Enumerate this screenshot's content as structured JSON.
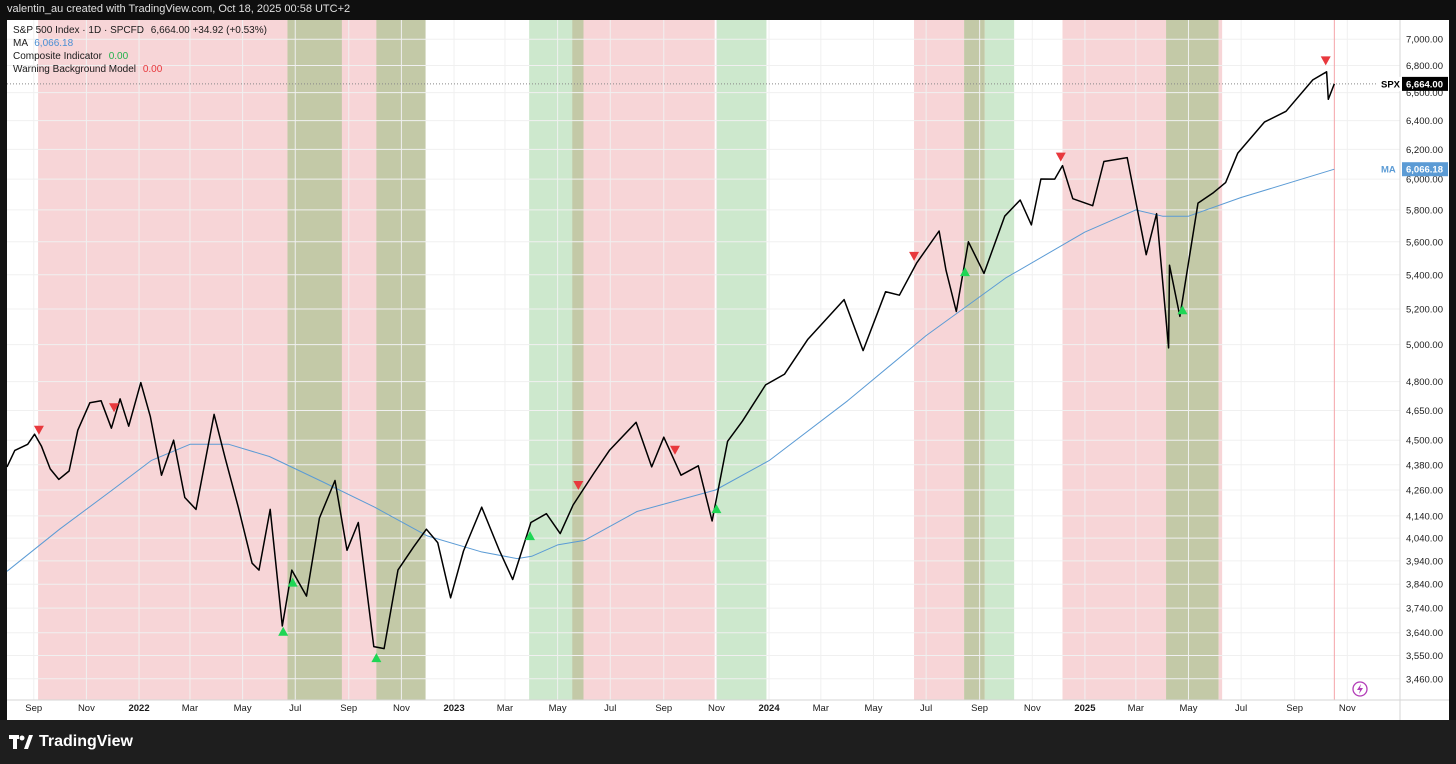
{
  "header": {
    "text": "valentin_au created with TradingView.com, Oct 18, 2025 00:58 UTC+2"
  },
  "legend": {
    "symbol": "S&P 500 Index · 1D · SPCFD",
    "symbol_values": "6,664.00  +34.92 (+0.53%)",
    "ma_label": "MA",
    "ma_value": "6,066.18",
    "composite_label": "Composite Indicator",
    "composite_value": "0.00",
    "warning_label": "Warning Background Model",
    "warning_value": "0.00"
  },
  "price_tags": {
    "spx_label": "SPX",
    "spx_value": "6,664.00",
    "ma_label": "MA",
    "ma_value": "6,066.18"
  },
  "footer": {
    "logo_text": "TradingView"
  },
  "colors": {
    "price": "#000000",
    "ma": "#5b9bd5",
    "warning_bg": "#f7d5d7",
    "green_bg": "#cde8cd",
    "overlap_bg": "#c3c9a7",
    "buy_marker": "#1fd655",
    "sell_marker": "#e8383d"
  },
  "chart_data": {
    "type": "line",
    "y_scale": "log",
    "ylim": [
      3380,
      7150
    ],
    "x_range": [
      "2021-08-01",
      "2025-11-25"
    ],
    "x_ticks": [
      {
        "label": "Sep",
        "date": "2021-09-01"
      },
      {
        "label": "Nov",
        "date": "2021-11-01"
      },
      {
        "label": "2022",
        "date": "2022-01-01"
      },
      {
        "label": "Mar",
        "date": "2022-03-01"
      },
      {
        "label": "May",
        "date": "2022-05-01"
      },
      {
        "label": "Jul",
        "date": "2022-07-01"
      },
      {
        "label": "Sep",
        "date": "2022-09-01"
      },
      {
        "label": "Nov",
        "date": "2022-11-01"
      },
      {
        "label": "2023",
        "date": "2023-01-01"
      },
      {
        "label": "Mar",
        "date": "2023-03-01"
      },
      {
        "label": "May",
        "date": "2023-05-01"
      },
      {
        "label": "Jul",
        "date": "2023-07-01"
      },
      {
        "label": "Sep",
        "date": "2023-09-01"
      },
      {
        "label": "Nov",
        "date": "2023-11-01"
      },
      {
        "label": "2024",
        "date": "2024-01-01"
      },
      {
        "label": "Mar",
        "date": "2024-03-01"
      },
      {
        "label": "May",
        "date": "2024-05-01"
      },
      {
        "label": "Jul",
        "date": "2024-07-01"
      },
      {
        "label": "Sep",
        "date": "2024-09-01"
      },
      {
        "label": "Nov",
        "date": "2024-11-01"
      },
      {
        "label": "2025",
        "date": "2025-01-01"
      },
      {
        "label": "Mar",
        "date": "2025-03-01"
      },
      {
        "label": "May",
        "date": "2025-05-01"
      },
      {
        "label": "Jul",
        "date": "2025-07-01"
      },
      {
        "label": "Sep",
        "date": "2025-09-01"
      },
      {
        "label": "Nov",
        "date": "2025-11-01"
      }
    ],
    "y_ticks": [
      {
        "label": "7,000.00",
        "value": 7000
      },
      {
        "label": "6,800.00",
        "value": 6800
      },
      {
        "label": "6,600.00",
        "value": 6600
      },
      {
        "label": "6,400.00",
        "value": 6400
      },
      {
        "label": "6,200.00",
        "value": 6200
      },
      {
        "label": "6,000.00",
        "value": 6000
      },
      {
        "label": "5,800.00",
        "value": 5800
      },
      {
        "label": "5,600.00",
        "value": 5600
      },
      {
        "label": "5,400.00",
        "value": 5400
      },
      {
        "label": "5,200.00",
        "value": 5200
      },
      {
        "label": "5,000.00",
        "value": 5000
      },
      {
        "label": "4,800.00",
        "value": 4800
      },
      {
        "label": "4,650.00",
        "value": 4650
      },
      {
        "label": "4,500.00",
        "value": 4500
      },
      {
        "label": "4,380.00",
        "value": 4380
      },
      {
        "label": "4,260.00",
        "value": 4260
      },
      {
        "label": "4,140.00",
        "value": 4140
      },
      {
        "label": "4,040.00",
        "value": 4040
      },
      {
        "label": "3,940.00",
        "value": 3940
      },
      {
        "label": "3,840.00",
        "value": 3840
      },
      {
        "label": "3,740.00",
        "value": 3740
      },
      {
        "label": "3,640.00",
        "value": 3640
      },
      {
        "label": "3,550.00",
        "value": 3550
      },
      {
        "label": "3,460.00",
        "value": 3460
      }
    ],
    "background_bands": [
      {
        "type": "warning",
        "start": "2021-09-06",
        "end": "2022-10-29"
      },
      {
        "type": "overlap",
        "start": "2022-06-22",
        "end": "2022-08-24"
      },
      {
        "type": "overlap",
        "start": "2022-10-03",
        "end": "2022-11-29"
      },
      {
        "type": "green",
        "start": "2023-03-29",
        "end": "2023-05-28"
      },
      {
        "type": "overlap",
        "start": "2023-05-18",
        "end": "2023-05-31"
      },
      {
        "type": "warning",
        "start": "2023-05-31",
        "end": "2023-10-30"
      },
      {
        "type": "green",
        "start": "2023-11-01",
        "end": "2023-12-29"
      },
      {
        "type": "warning",
        "start": "2024-06-17",
        "end": "2024-08-14"
      },
      {
        "type": "overlap",
        "start": "2024-08-14",
        "end": "2024-09-07"
      },
      {
        "type": "green",
        "start": "2024-09-07",
        "end": "2024-10-11"
      },
      {
        "type": "warning",
        "start": "2024-12-06",
        "end": "2025-04-05"
      },
      {
        "type": "overlap",
        "start": "2025-04-05",
        "end": "2025-06-05"
      },
      {
        "type": "warning",
        "start": "2025-06-05",
        "end": "2025-06-09"
      }
    ],
    "series": [
      {
        "key": "price",
        "points": [
          [
            "2021-08-01",
            4370
          ],
          [
            "2021-08-10",
            4450
          ],
          [
            "2021-08-25",
            4480
          ],
          [
            "2021-09-02",
            4530
          ],
          [
            "2021-09-10",
            4470
          ],
          [
            "2021-09-20",
            4360
          ],
          [
            "2021-09-30",
            4310
          ],
          [
            "2021-10-12",
            4350
          ],
          [
            "2021-10-22",
            4550
          ],
          [
            "2021-11-05",
            4690
          ],
          [
            "2021-11-18",
            4700
          ],
          [
            "2021-11-30",
            4560
          ],
          [
            "2021-12-10",
            4710
          ],
          [
            "2021-12-20",
            4570
          ],
          [
            "2022-01-03",
            4795
          ],
          [
            "2022-01-14",
            4620
          ],
          [
            "2022-01-27",
            4330
          ],
          [
            "2022-02-10",
            4500
          ],
          [
            "2022-02-23",
            4225
          ],
          [
            "2022-03-08",
            4170
          ],
          [
            "2022-03-29",
            4630
          ],
          [
            "2022-04-11",
            4410
          ],
          [
            "2022-04-26",
            4180
          ],
          [
            "2022-05-12",
            3930
          ],
          [
            "2022-05-20",
            3900
          ],
          [
            "2022-06-02",
            4170
          ],
          [
            "2022-06-16",
            3667
          ],
          [
            "2022-06-27",
            3900
          ],
          [
            "2022-07-14",
            3790
          ],
          [
            "2022-07-29",
            4130
          ],
          [
            "2022-08-16",
            4305
          ],
          [
            "2022-08-30",
            3986
          ],
          [
            "2022-09-12",
            4110
          ],
          [
            "2022-09-30",
            3585
          ],
          [
            "2022-10-12",
            3577
          ],
          [
            "2022-10-28",
            3901
          ],
          [
            "2022-11-15",
            4000
          ],
          [
            "2022-11-30",
            4080
          ],
          [
            "2022-12-13",
            4020
          ],
          [
            "2022-12-28",
            3783
          ],
          [
            "2023-01-12",
            3983
          ],
          [
            "2023-02-02",
            4180
          ],
          [
            "2023-02-22",
            3990
          ],
          [
            "2023-03-10",
            3860
          ],
          [
            "2023-03-31",
            4110
          ],
          [
            "2023-04-18",
            4150
          ],
          [
            "2023-05-04",
            4060
          ],
          [
            "2023-05-19",
            4190
          ],
          [
            "2023-06-12",
            4340
          ],
          [
            "2023-06-30",
            4450
          ],
          [
            "2023-07-31",
            4590
          ],
          [
            "2023-08-18",
            4370
          ],
          [
            "2023-09-01",
            4515
          ],
          [
            "2023-09-21",
            4330
          ],
          [
            "2023-10-11",
            4375
          ],
          [
            "2023-10-27",
            4117
          ],
          [
            "2023-11-14",
            4495
          ],
          [
            "2023-12-01",
            4595
          ],
          [
            "2023-12-28",
            4783
          ],
          [
            "2024-01-19",
            4840
          ],
          [
            "2024-02-15",
            5030
          ],
          [
            "2024-03-28",
            5254
          ],
          [
            "2024-04-19",
            4967
          ],
          [
            "2024-05-15",
            5300
          ],
          [
            "2024-05-31",
            5280
          ],
          [
            "2024-06-20",
            5470
          ],
          [
            "2024-07-16",
            5667
          ],
          [
            "2024-07-24",
            5427
          ],
          [
            "2024-08-05",
            5186
          ],
          [
            "2024-08-19",
            5600
          ],
          [
            "2024-09-06",
            5408
          ],
          [
            "2024-09-30",
            5760
          ],
          [
            "2024-10-18",
            5864
          ],
          [
            "2024-10-31",
            5705
          ],
          [
            "2024-11-11",
            6001
          ],
          [
            "2024-11-27",
            6000
          ],
          [
            "2024-12-06",
            6090
          ],
          [
            "2024-12-18",
            5872
          ],
          [
            "2025-01-10",
            5827
          ],
          [
            "2025-01-23",
            6118
          ],
          [
            "2025-02-19",
            6144
          ],
          [
            "2025-03-13",
            5521
          ],
          [
            "2025-03-25",
            5776
          ],
          [
            "2025-04-08",
            4982
          ],
          [
            "2025-04-09",
            5457
          ],
          [
            "2025-04-21",
            5158
          ],
          [
            "2025-05-12",
            5844
          ],
          [
            "2025-05-30",
            5912
          ],
          [
            "2025-06-13",
            5977
          ],
          [
            "2025-06-27",
            6173
          ],
          [
            "2025-07-28",
            6389
          ],
          [
            "2025-08-22",
            6466
          ],
          [
            "2025-09-22",
            6693
          ],
          [
            "2025-10-08",
            6753
          ],
          [
            "2025-10-10",
            6552
          ],
          [
            "2025-10-17",
            6664
          ]
        ]
      },
      {
        "key": "ma",
        "points": [
          [
            "2021-08-01",
            3895
          ],
          [
            "2021-10-01",
            4080
          ],
          [
            "2021-12-01",
            4260
          ],
          [
            "2022-01-15",
            4400
          ],
          [
            "2022-03-01",
            4480
          ],
          [
            "2022-04-15",
            4480
          ],
          [
            "2022-06-01",
            4420
          ],
          [
            "2022-08-01",
            4300
          ],
          [
            "2022-10-01",
            4180
          ],
          [
            "2022-12-01",
            4050
          ],
          [
            "2023-02-01",
            3980
          ],
          [
            "2023-03-15",
            3950
          ],
          [
            "2023-04-01",
            3960
          ],
          [
            "2023-05-01",
            4010
          ],
          [
            "2023-06-01",
            4030
          ],
          [
            "2023-08-01",
            4160
          ],
          [
            "2023-10-31",
            4260
          ],
          [
            "2024-01-01",
            4400
          ],
          [
            "2024-04-01",
            4700
          ],
          [
            "2024-07-01",
            5050
          ],
          [
            "2024-10-01",
            5380
          ],
          [
            "2025-01-01",
            5660
          ],
          [
            "2025-03-01",
            5800
          ],
          [
            "2025-04-01",
            5760
          ],
          [
            "2025-05-01",
            5760
          ],
          [
            "2025-07-01",
            5880
          ],
          [
            "2025-10-17",
            6066
          ]
        ]
      }
    ],
    "buy_markers": [
      "2022-06-17",
      "2022-06-28",
      "2022-10-03",
      "2023-03-30",
      "2023-11-01",
      "2024-08-15",
      "2025-04-24"
    ],
    "sell_markers": [
      "2021-09-07",
      "2021-12-03",
      "2023-05-25",
      "2023-09-14",
      "2024-06-17",
      "2024-12-04",
      "2025-10-07"
    ]
  }
}
